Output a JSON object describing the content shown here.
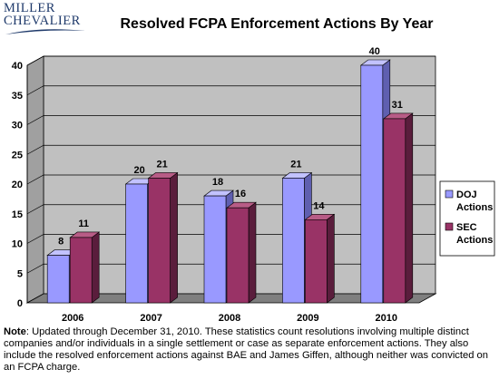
{
  "logo": {
    "line1": "MILLER",
    "line2": "CHEVALIER"
  },
  "colors": {
    "doj": "#9999ff",
    "doj_side": "#5f5fb0",
    "doj_top": "#c2c2ff",
    "sec": "#993366",
    "sec_side": "#5a1d3c",
    "sec_top": "#b85c86",
    "wall": "#c0c0c0",
    "floor": "#7f7f7f",
    "logo": "#1f3a6b"
  },
  "chart_data": {
    "type": "bar",
    "title": "Resolved FCPA Enforcement Actions By Year",
    "categories": [
      "2006",
      "2007",
      "2008",
      "2009",
      "2010"
    ],
    "series": [
      {
        "name": "DOJ Actions",
        "legend_lines": [
          "DOJ",
          "Actions"
        ],
        "values": [
          8,
          20,
          18,
          21,
          40
        ]
      },
      {
        "name": "SEC Actions",
        "legend_lines": [
          "SEC",
          "Actions"
        ],
        "values": [
          11,
          21,
          16,
          14,
          31
        ]
      }
    ],
    "ylim": [
      0,
      40
    ],
    "yticks": [
      0,
      5,
      10,
      15,
      20,
      25,
      30,
      35,
      40
    ],
    "xlabel": "",
    "ylabel": "",
    "grid": true,
    "legend": "right",
    "three_d": true
  },
  "note": {
    "label": "Note",
    "text": ": Updated through December 31, 2010. These statistics count resolutions involving multiple distinct companies and/or individuals in a single settlement or case as separate enforcement actions. They also include the resolved enforcement actions against BAE and James Giffen, although neither was convicted on an FCPA charge."
  }
}
